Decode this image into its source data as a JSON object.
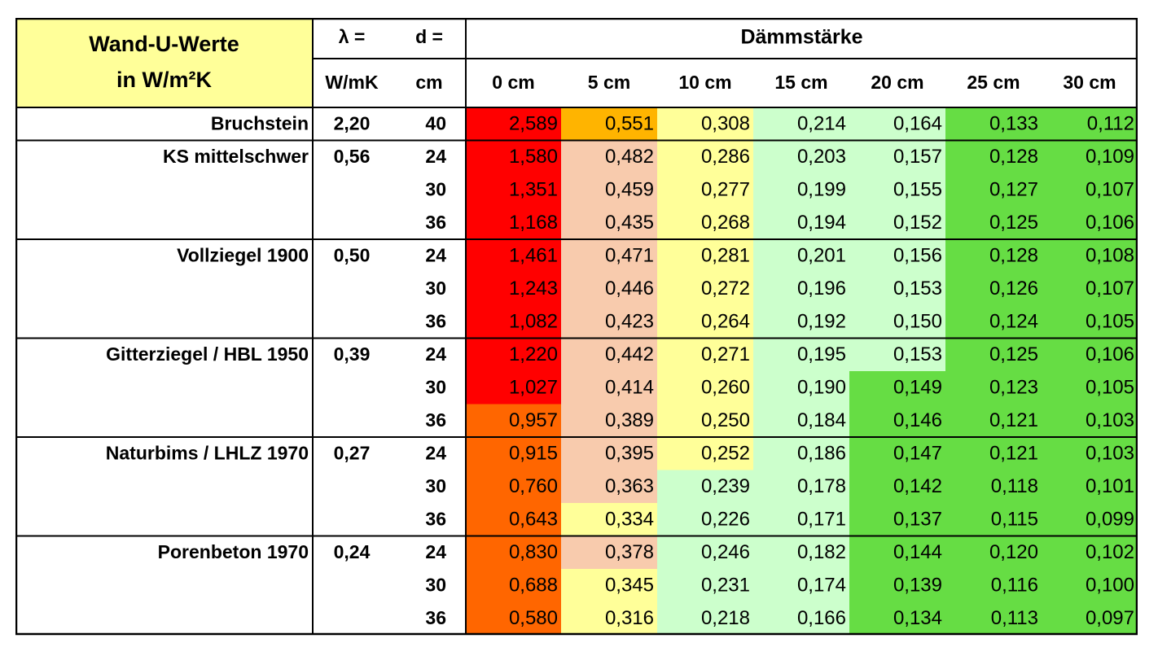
{
  "chart_data": {
    "type": "table",
    "title": "Wand-U-Werte",
    "unit_label": "in W/m²K",
    "lambda_label": "λ =",
    "lambda_unit": "W/mK",
    "d_label": "d =",
    "d_unit": "cm",
    "insulation_header": "Dämmstärke",
    "columns": [
      "0 cm",
      "5 cm",
      "10 cm",
      "15 cm",
      "20 cm",
      "25 cm",
      "30 cm"
    ],
    "groups": [
      {
        "material": "Bruchstein",
        "lambda": "2,20",
        "rows": [
          {
            "d": "40",
            "values": [
              "2,589",
              "0,551",
              "0,308",
              "0,214",
              "0,164",
              "0,133",
              "0,112"
            ]
          }
        ]
      },
      {
        "material": "KS mittelschwer",
        "lambda": "0,56",
        "rows": [
          {
            "d": "24",
            "values": [
              "1,580",
              "0,482",
              "0,286",
              "0,203",
              "0,157",
              "0,128",
              "0,109"
            ]
          },
          {
            "d": "30",
            "values": [
              "1,351",
              "0,459",
              "0,277",
              "0,199",
              "0,155",
              "0,127",
              "0,107"
            ]
          },
          {
            "d": "36",
            "values": [
              "1,168",
              "0,435",
              "0,268",
              "0,194",
              "0,152",
              "0,125",
              "0,106"
            ]
          }
        ]
      },
      {
        "material": "Vollziegel 1900",
        "lambda": "0,50",
        "rows": [
          {
            "d": "24",
            "values": [
              "1,461",
              "0,471",
              "0,281",
              "0,201",
              "0,156",
              "0,128",
              "0,108"
            ]
          },
          {
            "d": "30",
            "values": [
              "1,243",
              "0,446",
              "0,272",
              "0,196",
              "0,153",
              "0,126",
              "0,107"
            ]
          },
          {
            "d": "36",
            "values": [
              "1,082",
              "0,423",
              "0,264",
              "0,192",
              "0,150",
              "0,124",
              "0,105"
            ]
          }
        ]
      },
      {
        "material": "Gitterziegel / HBL 1950",
        "lambda": "0,39",
        "rows": [
          {
            "d": "24",
            "values": [
              "1,220",
              "0,442",
              "0,271",
              "0,195",
              "0,153",
              "0,125",
              "0,106"
            ]
          },
          {
            "d": "30",
            "values": [
              "1,027",
              "0,414",
              "0,260",
              "0,190",
              "0,149",
              "0,123",
              "0,105"
            ]
          },
          {
            "d": "36",
            "values": [
              "0,957",
              "0,389",
              "0,250",
              "0,184",
              "0,146",
              "0,121",
              "0,103"
            ]
          }
        ]
      },
      {
        "material": "Naturbims / LHLZ 1970",
        "lambda": "0,27",
        "rows": [
          {
            "d": "24",
            "values": [
              "0,915",
              "0,395",
              "0,252",
              "0,186",
              "0,147",
              "0,121",
              "0,103"
            ]
          },
          {
            "d": "30",
            "values": [
              "0,760",
              "0,363",
              "0,239",
              "0,178",
              "0,142",
              "0,118",
              "0,101"
            ]
          },
          {
            "d": "36",
            "values": [
              "0,643",
              "0,334",
              "0,226",
              "0,171",
              "0,137",
              "0,115",
              "0,099"
            ]
          }
        ]
      },
      {
        "material": "Porenbeton 1970",
        "lambda": "0,24",
        "rows": [
          {
            "d": "24",
            "values": [
              "0,830",
              "0,378",
              "0,246",
              "0,182",
              "0,144",
              "0,120",
              "0,102"
            ]
          },
          {
            "d": "30",
            "values": [
              "0,688",
              "0,345",
              "0,231",
              "0,174",
              "0,139",
              "0,116",
              "0,100"
            ]
          },
          {
            "d": "36",
            "values": [
              "0,580",
              "0,316",
              "0,218",
              "0,166",
              "0,134",
              "0,113",
              "0,097"
            ]
          }
        ]
      }
    ],
    "color_scale": [
      {
        "min": 1.0,
        "color": "#FF0000"
      },
      {
        "min": 0.56,
        "color": "#FF6600"
      },
      {
        "min": 0.5,
        "color": "#FFB400"
      },
      {
        "min": 0.35,
        "color": "#F8CBAD"
      },
      {
        "min": 0.25,
        "color": "#FFFF99"
      },
      {
        "min": 0.15,
        "color": "#CCFFCC"
      },
      {
        "min": 0.0,
        "color": "#66DD44"
      }
    ],
    "header_fill": "#FFFF99"
  }
}
